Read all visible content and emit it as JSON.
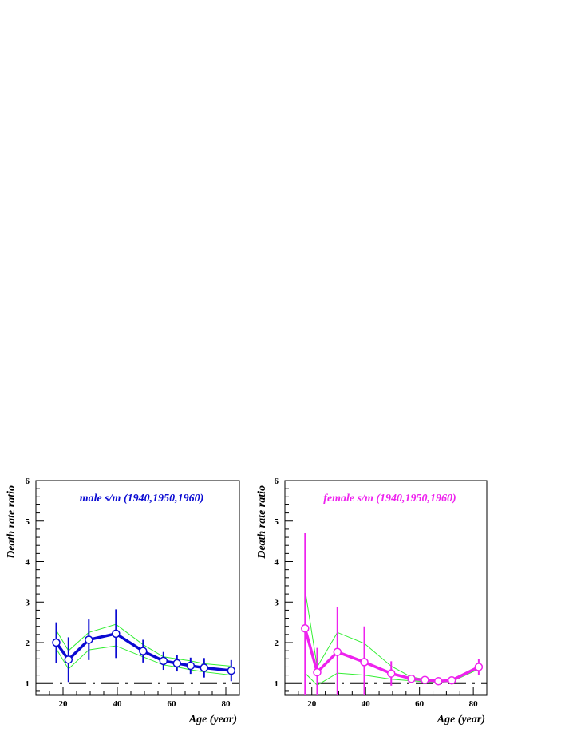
{
  "chart_data": [
    {
      "type": "line",
      "title": "male s/m (1940,1950,1960)",
      "xlabel": "Age (year)",
      "ylabel": "Death rate ratio",
      "xlim": [
        10,
        85
      ],
      "ylim": [
        0.7,
        6
      ],
      "xticks": [
        20,
        40,
        60,
        80
      ],
      "yticks": [
        1,
        2,
        3,
        4,
        5,
        6
      ],
      "grid": false,
      "reference_line": 1,
      "colors": {
        "main": "#0a0ad2",
        "band": "#33ee33",
        "title": "#0a0ad2"
      },
      "series": [
        {
          "x": [
            17.5,
            22,
            29.5,
            39.5,
            49.5,
            57,
            62,
            67,
            72,
            82
          ],
          "y": [
            2.0,
            1.58,
            2.07,
            2.22,
            1.79,
            1.55,
            1.49,
            1.43,
            1.38,
            1.31
          ],
          "error": [
            0.5,
            0.55,
            0.5,
            0.6,
            0.28,
            0.22,
            0.2,
            0.2,
            0.24,
            0.26
          ]
        }
      ],
      "band_upper": [
        2.3,
        1.8,
        2.25,
        2.45,
        1.95,
        1.65,
        1.6,
        1.55,
        1.48,
        1.42
      ],
      "band_lower": [
        1.85,
        1.35,
        1.82,
        1.92,
        1.65,
        1.45,
        1.4,
        1.33,
        1.28,
        1.2
      ]
    },
    {
      "type": "line",
      "title": "female s/m (1940,1950,1960)",
      "xlabel": "Age (year)",
      "ylabel": "Death rate ratio",
      "xlim": [
        10,
        85
      ],
      "ylim": [
        0.7,
        6
      ],
      "xticks": [
        20,
        40,
        60,
        80
      ],
      "yticks": [
        1,
        2,
        3,
        4,
        5,
        6
      ],
      "grid": false,
      "reference_line": 1,
      "colors": {
        "main": "#ee22ee",
        "band": "#33ee33",
        "title": "#ee22ee"
      },
      "series": [
        {
          "x": [
            17.5,
            22,
            29.5,
            39.5,
            49.5,
            57,
            62,
            67,
            72,
            82
          ],
          "y": [
            2.35,
            1.27,
            1.77,
            1.52,
            1.24,
            1.11,
            1.08,
            1.05,
            1.07,
            1.4
          ],
          "error": [
            2.35,
            0.6,
            1.1,
            0.88,
            0.3,
            0.05,
            0.05,
            0.05,
            0.05,
            0.2
          ]
        }
      ],
      "band_upper": [
        3.3,
        1.4,
        2.25,
        1.98,
        1.42,
        1.15,
        1.1,
        1.06,
        1.09,
        1.42
      ],
      "band_lower": [
        1.25,
        0.95,
        1.25,
        1.2,
        1.1,
        1.06,
        1.04,
        1.02,
        1.04,
        1.35
      ]
    }
  ]
}
